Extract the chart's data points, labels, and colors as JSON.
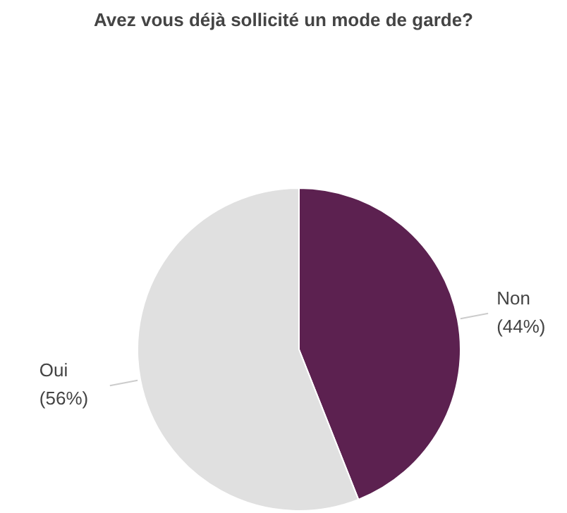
{
  "chart_data": {
    "type": "pie",
    "title": "Avez vous déjà sollicité un mode de garde?",
    "categories": [
      "Non",
      "Oui"
    ],
    "values": [
      44,
      56
    ],
    "colors": [
      "#5c2150",
      "#e0e0e0"
    ],
    "value_labels": [
      "(44%)",
      "(56%)"
    ],
    "legend": false
  }
}
